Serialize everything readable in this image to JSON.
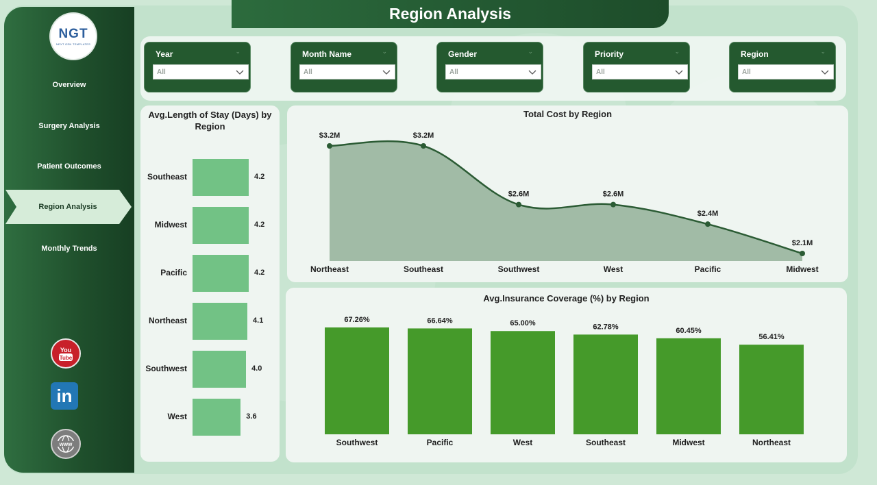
{
  "page": {
    "title": "Region Analysis"
  },
  "logo": {
    "text": "NGT",
    "subtext": "NEXT GEN TEMPLATES"
  },
  "nav": [
    {
      "label": "Overview",
      "active": false
    },
    {
      "label": "Surgery Analysis",
      "active": false
    },
    {
      "label": "Patient Outcomes",
      "active": false
    },
    {
      "label": "Region Analysis",
      "active": true
    },
    {
      "label": "Monthly Trends",
      "active": false
    }
  ],
  "social": [
    {
      "name": "youtube",
      "label": "You Tube"
    },
    {
      "name": "linkedin",
      "label": "in"
    },
    {
      "name": "website",
      "label": "www"
    }
  ],
  "filters": [
    {
      "label": "Year",
      "value": "All"
    },
    {
      "label": "Month Name",
      "value": "All"
    },
    {
      "label": "Gender",
      "value": "All"
    },
    {
      "label": "Priority",
      "value": "All"
    },
    {
      "label": "Region",
      "value": "All"
    }
  ],
  "colors": {
    "sidebar": "#1f4f2c",
    "bar_light": "#72c285",
    "bar_green": "#459a2a",
    "line": "#2b5b34",
    "area": "#98b59d"
  },
  "chart_data": [
    {
      "type": "bar",
      "orientation": "horizontal",
      "title": "Avg.Length of Stay (Days) by Region",
      "categories": [
        "Southeast",
        "Midwest",
        "Pacific",
        "Northeast",
        "Southwest",
        "West"
      ],
      "values": [
        4.2,
        4.2,
        4.2,
        4.1,
        4.0,
        3.6
      ],
      "labels": [
        "4.2",
        "4.2",
        "4.2",
        "4.1",
        "4.0",
        "3.6"
      ]
    },
    {
      "type": "area",
      "title": "Total Cost by Region",
      "categories": [
        "Northeast",
        "Southeast",
        "Southwest",
        "West",
        "Pacific",
        "Midwest"
      ],
      "values": [
        3.2,
        3.2,
        2.6,
        2.6,
        2.4,
        2.1
      ],
      "labels": [
        "$3.2M",
        "$3.2M",
        "$2.6M",
        "$2.6M",
        "$2.4M",
        "$2.1M"
      ],
      "unit": "$M"
    },
    {
      "type": "bar",
      "title": "Avg.Insurance Coverage (%) by Region",
      "categories": [
        "Southwest",
        "Pacific",
        "West",
        "Southeast",
        "Midwest",
        "Northeast"
      ],
      "values": [
        67.26,
        66.64,
        65.0,
        62.78,
        60.45,
        56.41
      ],
      "labels": [
        "67.26%",
        "66.64%",
        "65.00%",
        "62.78%",
        "60.45%",
        "56.41%"
      ]
    }
  ]
}
